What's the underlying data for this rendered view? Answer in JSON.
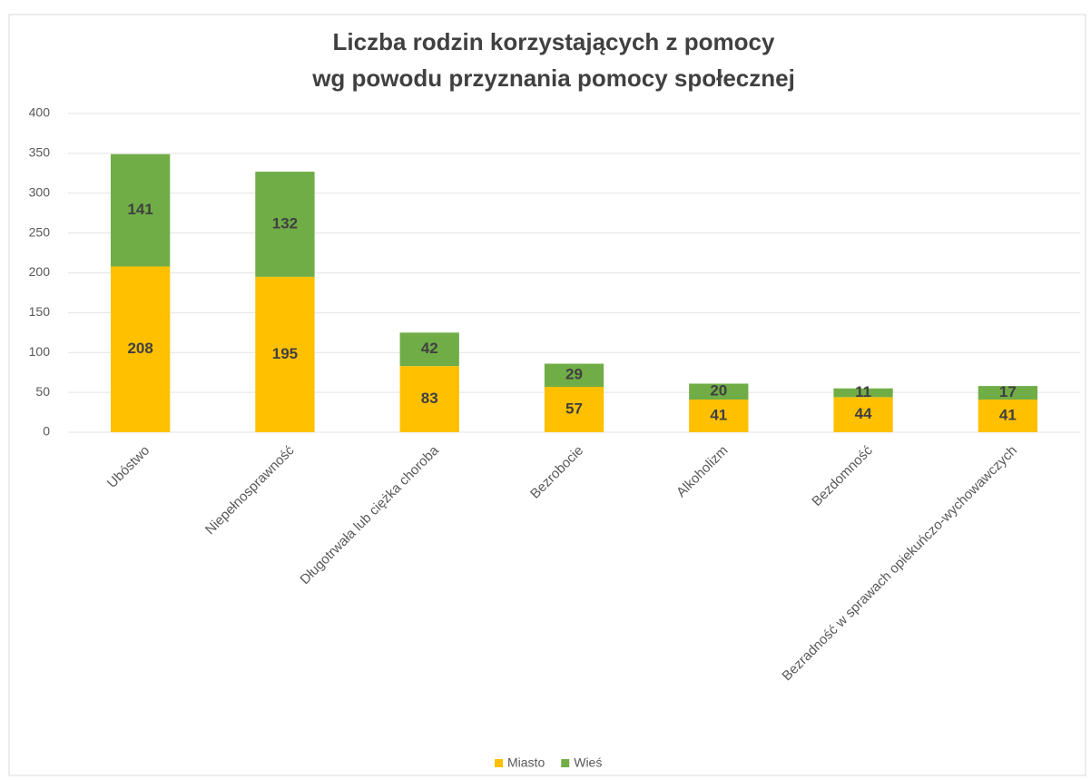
{
  "chart_data": {
    "type": "stacked_bar",
    "title": [
      "Liczba rodzin korzystających z pomocy",
      "wg powodu przyznania pomocy społecznej"
    ],
    "categories": [
      "Ubóstwo",
      "Niepełnosprawność",
      "Długotrwała lub ciężka choroba",
      "Bezrobocie",
      "Alkoholizm",
      "Bezdomność",
      "Bezradność w sprawach opiekuńczo-wychowawczych"
    ],
    "series": [
      {
        "name": "Miasto",
        "color": "#ffc000",
        "values": [
          208,
          195,
          83,
          57,
          41,
          44,
          41
        ]
      },
      {
        "name": "Wieś",
        "color": "#70ad47",
        "values": [
          141,
          132,
          42,
          29,
          20,
          11,
          17
        ]
      }
    ],
    "ylim": [
      0,
      400
    ],
    "yticks": [
      0,
      50,
      100,
      150,
      200,
      250,
      300,
      350,
      400
    ],
    "grid": true,
    "legend": "bottom"
  }
}
